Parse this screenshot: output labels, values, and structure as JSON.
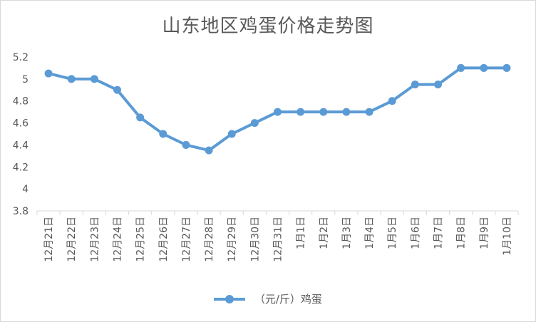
{
  "colors": {
    "series": "#5b9bd5",
    "grid": "#d9d9d9",
    "text": "#595959"
  },
  "chart_data": {
    "type": "line",
    "title": "山东地区鸡蛋价格走势图",
    "categories": [
      "12月21日",
      "12月22日",
      "12月23日",
      "12月24日",
      "12月25日",
      "12月26日",
      "12月27日",
      "12月28日",
      "12月29日",
      "12月30日",
      "12月31日",
      "1月1日",
      "1月2日",
      "1月3日",
      "1月4日",
      "1月5日",
      "1月6日",
      "1月7日",
      "1月8日",
      "1月9日",
      "1月10日"
    ],
    "series": [
      {
        "name": "（元/斤）鸡蛋",
        "values": [
          5.05,
          5.0,
          5.0,
          4.9,
          4.65,
          4.5,
          4.4,
          4.35,
          4.5,
          4.6,
          4.7,
          4.7,
          4.7,
          4.7,
          4.7,
          4.8,
          4.95,
          4.95,
          5.1,
          5.1,
          5.1
        ]
      }
    ],
    "ylim": [
      3.8,
      5.2
    ],
    "yticks": [
      "3.8",
      "4",
      "4.2",
      "4.4",
      "4.6",
      "4.8",
      "5",
      "5.2"
    ],
    "grid": false,
    "legend": "bottom"
  }
}
